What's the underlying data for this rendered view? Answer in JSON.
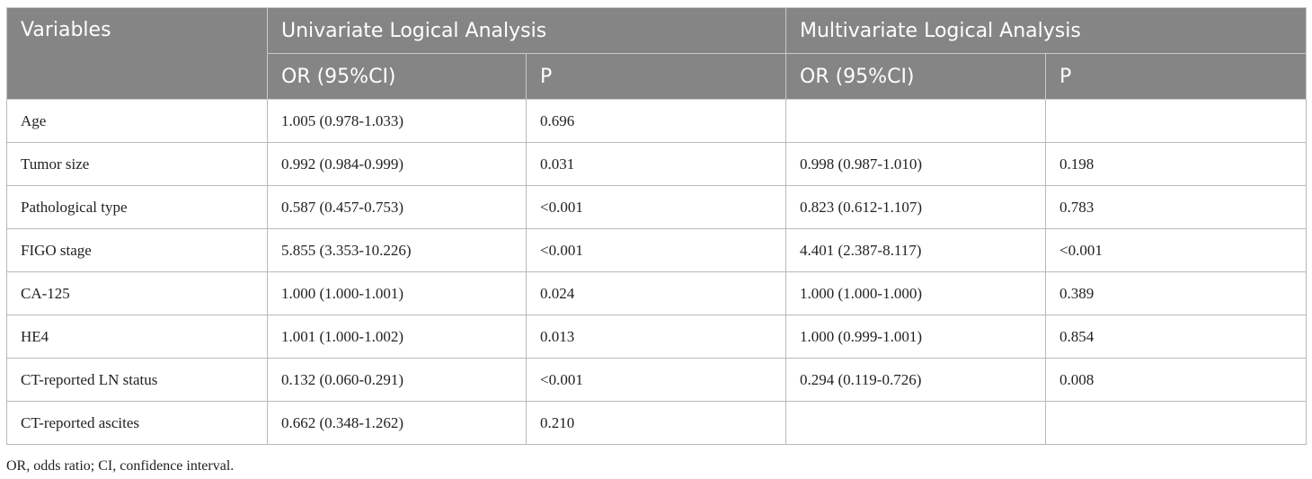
{
  "table": {
    "header_row1": {
      "variables": "Variables",
      "univariate": "Univariate Logical Analysis",
      "multivariate": "Multivariate Logical Analysis"
    },
    "header_row2": {
      "uni_or": "OR (95%CI)",
      "uni_p": "P",
      "multi_or": "OR (95%CI)",
      "multi_p": "P"
    },
    "rows": [
      {
        "variable": "Age",
        "uni_or": "1.005 (0.978-1.033)",
        "uni_p": "0.696",
        "multi_or": "",
        "multi_p": ""
      },
      {
        "variable": "Tumor size",
        "uni_or": "0.992 (0.984-0.999)",
        "uni_p": "0.031",
        "multi_or": "0.998 (0.987-1.010)",
        "multi_p": "0.198"
      },
      {
        "variable": "Pathological type",
        "uni_or": "0.587 (0.457-0.753)",
        "uni_p": "<0.001",
        "multi_or": "0.823 (0.612-1.107)",
        "multi_p": "0.783"
      },
      {
        "variable": "FIGO stage",
        "uni_or": "5.855 (3.353-10.226)",
        "uni_p": "<0.001",
        "multi_or": "4.401 (2.387-8.117)",
        "multi_p": "<0.001"
      },
      {
        "variable": "CA-125",
        "uni_or": "1.000 (1.000-1.001)",
        "uni_p": "0.024",
        "multi_or": "1.000 (1.000-1.000)",
        "multi_p": "0.389"
      },
      {
        "variable": "HE4",
        "uni_or": "1.001 (1.000-1.002)",
        "uni_p": "0.013",
        "multi_or": "1.000 (0.999-1.001)",
        "multi_p": "0.854"
      },
      {
        "variable": "CT-reported LN status",
        "uni_or": "0.132 (0.060-0.291)",
        "uni_p": "<0.001",
        "multi_or": "0.294 (0.119-0.726)",
        "multi_p": "0.008"
      },
      {
        "variable": "CT-reported ascites",
        "uni_or": "0.662 (0.348-1.262)",
        "uni_p": "0.210",
        "multi_or": "",
        "multi_p": ""
      }
    ]
  },
  "footnote": "OR, odds ratio; CI, confidence interval.",
  "colors": {
    "header_bg": "#858585",
    "header_text": "#ffffff",
    "border": "#b9b9b9"
  }
}
